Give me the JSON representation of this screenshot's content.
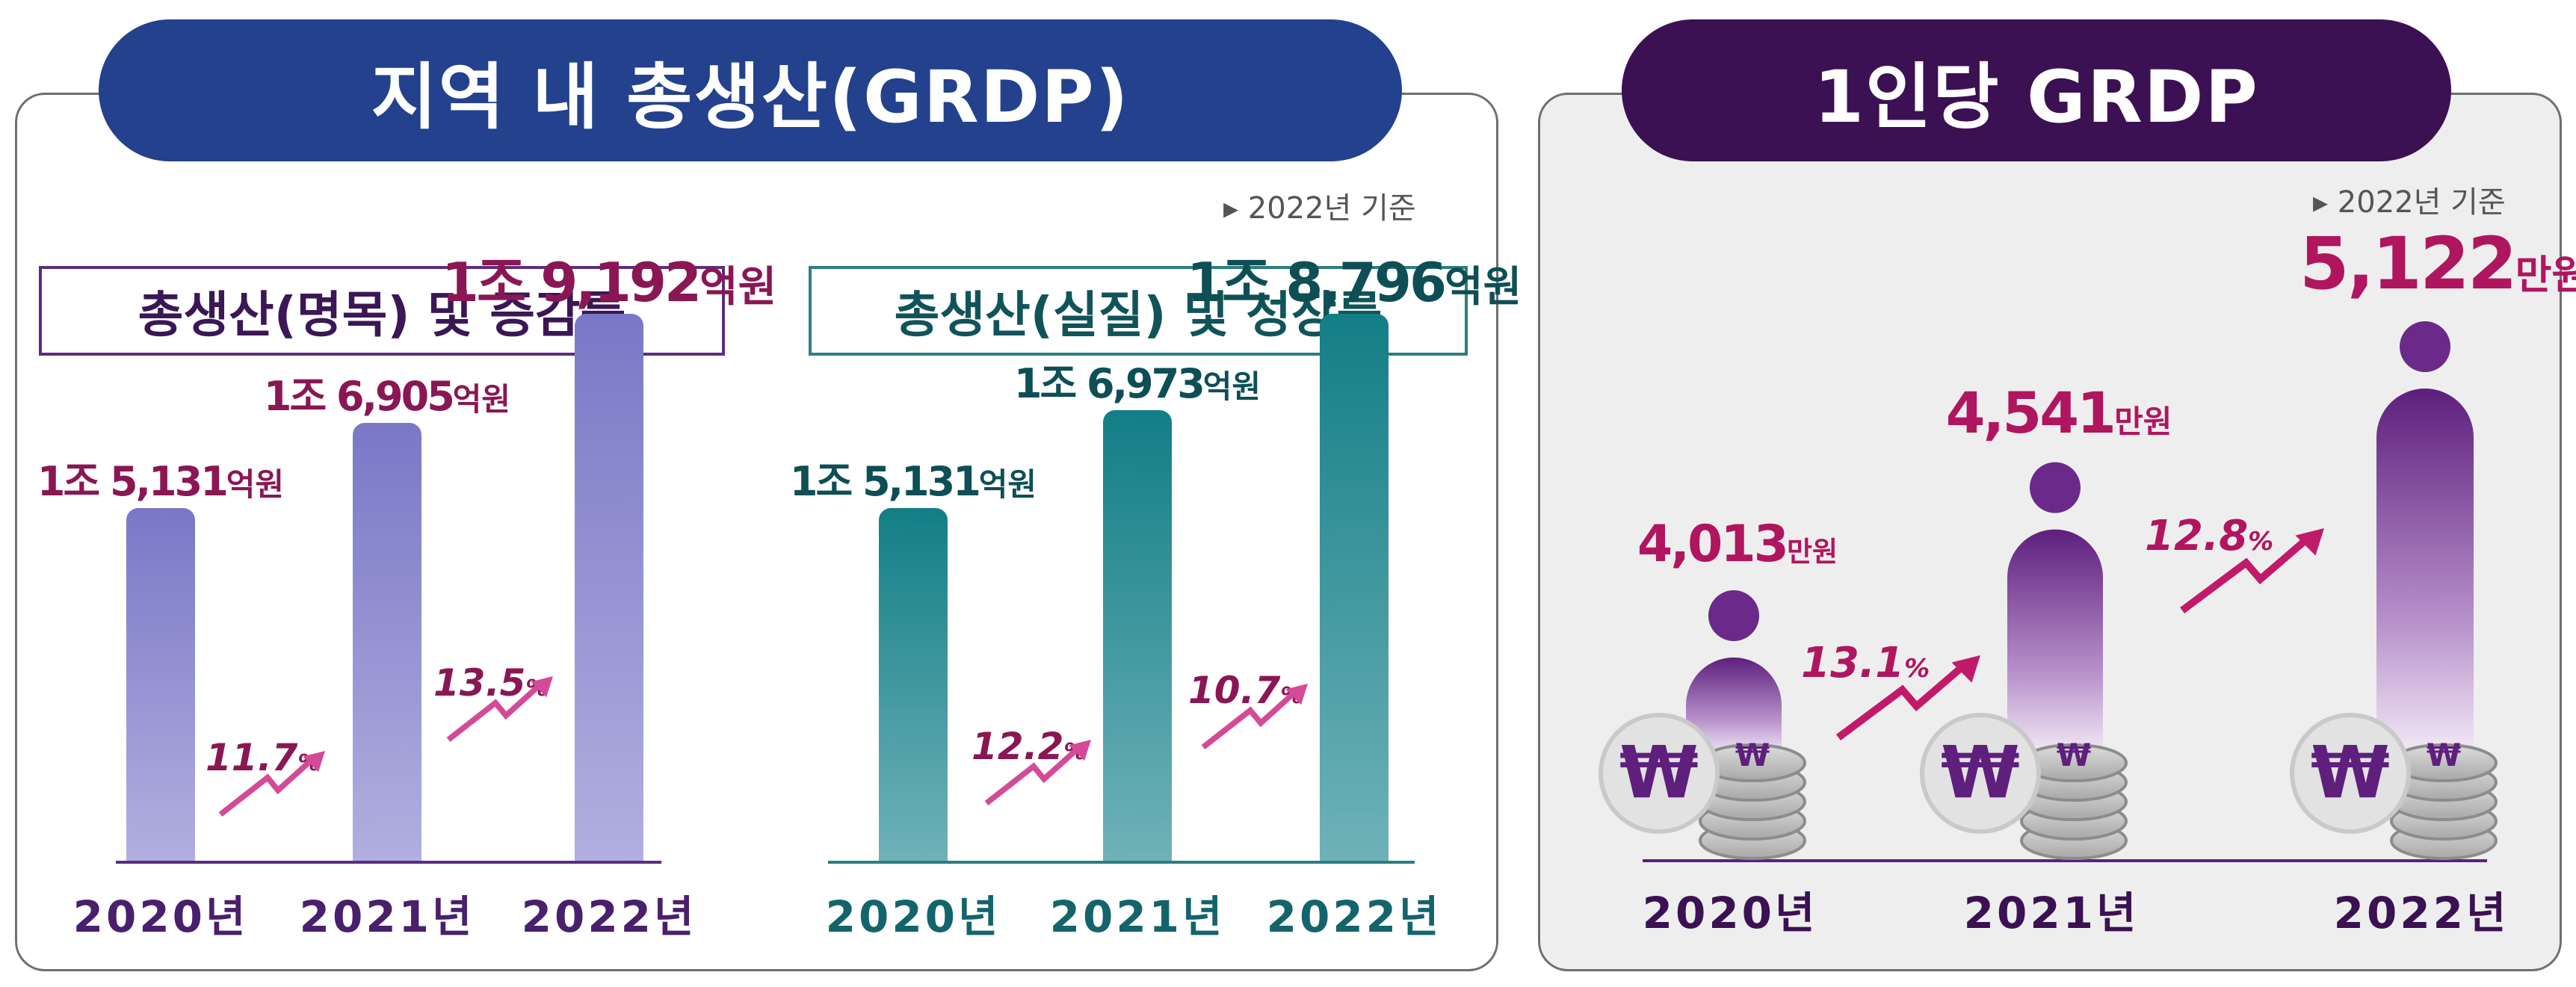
{
  "header_left": "지역 내 총생산(GRDP)",
  "header_right": "1인당 GRDP",
  "basis_left": "▸ 2022년 기준",
  "basis_right": "▸ 2022년 기준",
  "nominal_title": "총생산(명목) 및 증감률",
  "real_title": "총생산(실질) 및 성장률",
  "colors": {
    "nominal_bar": "#7a78c6",
    "real_bar": "#137e86",
    "accent": "#c21a6a",
    "header_left": "#23418c",
    "header_right": "#3b1153"
  },
  "chart_data": [
    {
      "type": "bar",
      "title": "총생산(명목) 및 증감률",
      "categories": [
        "2020년",
        "2021년",
        "2022년"
      ],
      "values": [
        15131,
        16905,
        19192
      ],
      "value_labels": [
        {
          "main": "1조 5,131",
          "unit": "억원"
        },
        {
          "main": "1조 6,905",
          "unit": "억원"
        },
        {
          "main": "1조 9,192",
          "unit": "억원"
        }
      ],
      "rates": [
        "11.7",
        "13.5"
      ],
      "rate_unit": "%"
    },
    {
      "type": "bar",
      "title": "총생산(실질) 및 성장률",
      "categories": [
        "2020년",
        "2021년",
        "2022년"
      ],
      "values": [
        15131,
        16973,
        18796
      ],
      "value_labels": [
        {
          "main": "1조 5,131",
          "unit": "억원"
        },
        {
          "main": "1조 6,973",
          "unit": "억원"
        },
        {
          "main": "1조 8,796",
          "unit": "억원"
        }
      ],
      "rates": [
        "12.2",
        "10.7"
      ],
      "rate_unit": "%"
    },
    {
      "type": "bar",
      "title": "1인당 GRDP",
      "categories": [
        "2020년",
        "2021년",
        "2022년"
      ],
      "values": [
        4013,
        4541,
        5122
      ],
      "value_labels": [
        {
          "main": "4,013",
          "unit": "만원"
        },
        {
          "main": "4,541",
          "unit": "만원"
        },
        {
          "main": "5,122",
          "unit": "만원"
        }
      ],
      "rates": [
        "13.1",
        "12.8"
      ],
      "rate_unit": "%",
      "icon": "won-coin-icon"
    }
  ]
}
